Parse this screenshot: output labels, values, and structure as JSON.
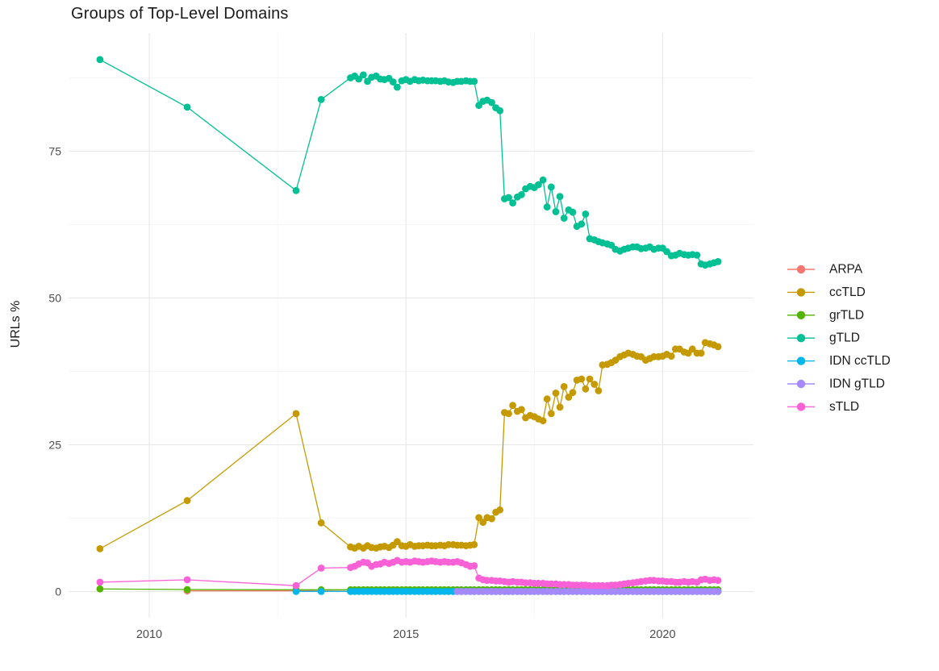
{
  "chart_data": {
    "type": "line-scatter",
    "title": "Groups of Top-Level Domains",
    "xlabel": "",
    "ylabel": "URLs %",
    "x_axis": {
      "ticks": [
        2010,
        2015,
        2020
      ],
      "minor_ticks": [
        2012.5,
        2017.5
      ],
      "range": [
        2008.45,
        2021.75
      ]
    },
    "y_axis": {
      "ticks": [
        0,
        25,
        50,
        75
      ],
      "minor_ticks": [
        12.5,
        37.5,
        62.5,
        87.5
      ],
      "range": [
        -4.6,
        95.2
      ]
    },
    "grid": true,
    "legend_position": "right",
    "colors": {
      "grid_major": "#e7e7e7",
      "grid_minor": "#f3f3f3",
      "tick_label": "#4d4d4d",
      "text": "#1a1a1a"
    },
    "x_dense": [
      2013.92,
      2014,
      2014.08,
      2014.17,
      2014.25,
      2014.33,
      2014.42,
      2014.5,
      2014.58,
      2014.67,
      2014.75,
      2014.83,
      2014.92,
      2015,
      2015.08,
      2015.17,
      2015.25,
      2015.33,
      2015.42,
      2015.5,
      2015.58,
      2015.67,
      2015.75,
      2015.83,
      2015.92,
      2016,
      2016.08,
      2016.17,
      2016.25,
      2016.33,
      2016.42,
      2016.5,
      2016.58,
      2016.67,
      2016.75,
      2016.83,
      2016.92,
      2017,
      2017.08,
      2017.17,
      2017.25,
      2017.33,
      2017.42,
      2017.5,
      2017.58,
      2017.67,
      2017.75,
      2017.83,
      2017.92,
      2018,
      2018.08,
      2018.17,
      2018.25,
      2018.33,
      2018.42,
      2018.5,
      2018.58,
      2018.67,
      2018.75,
      2018.83,
      2018.92,
      2019,
      2019.08,
      2019.17,
      2019.25,
      2019.33,
      2019.42,
      2019.5,
      2019.58,
      2019.67,
      2019.75,
      2019.83,
      2019.92,
      2020,
      2020.08,
      2020.17,
      2020.25,
      2020.33,
      2020.42,
      2020.5,
      2020.58,
      2020.67,
      2020.75,
      2020.83,
      2020.92,
      2021,
      2021.08
    ],
    "series": [
      {
        "name": "ARPA",
        "color": "#F8766D",
        "early": [
          [
            2010.74,
            0.12
          ],
          [
            2012.86,
            0.12
          ]
        ],
        "dense_from": 2013.92,
        "dense_const": 0.05
      },
      {
        "name": "ccTLD",
        "color": "#C49A00",
        "early": [
          [
            2009.04,
            7.3
          ],
          [
            2010.74,
            15.5
          ],
          [
            2012.86,
            30.3
          ],
          [
            2013.35,
            11.7
          ]
        ],
        "dense_from": 2013.92,
        "dense_y": [
          7.6,
          7.4,
          7.7,
          7.4,
          7.8,
          7.5,
          7.4,
          7.6,
          7.7,
          7.5,
          7.9,
          8.5,
          7.8,
          7.7,
          8.0,
          7.7,
          7.8,
          7.8,
          7.9,
          7.8,
          7.8,
          7.9,
          7.8,
          8.0,
          8.0,
          7.9,
          7.9,
          7.8,
          7.9,
          8.0,
          12.6,
          11.8,
          12.6,
          12.4,
          13.5,
          13.9,
          30.5,
          30.3,
          31.7,
          30.7,
          31.0,
          29.6,
          30.0,
          29.8,
          29.4,
          29.1,
          32.8,
          30.3,
          33.8,
          31.4,
          34.9,
          33.1,
          33.9,
          36.0,
          36.2,
          34.5,
          36.2,
          35.3,
          34.2,
          38.6,
          38.7,
          39.0,
          39.4,
          40.0,
          40.3,
          40.6,
          40.4,
          40.1,
          40.0,
          39.4,
          39.7,
          40.0,
          40.0,
          40.1,
          40.4,
          40.1,
          41.3,
          41.3,
          40.8,
          40.6,
          41.3,
          40.6,
          40.6,
          42.4,
          42.2,
          42.0,
          41.7
        ]
      },
      {
        "name": "grTLD",
        "color": "#53B400",
        "early": [
          [
            2009.04,
            0.45
          ],
          [
            2010.74,
            0.35
          ],
          [
            2012.86,
            0.3
          ],
          [
            2013.35,
            0.3
          ]
        ],
        "dense_from": 2013.92,
        "dense_const": 0.3
      },
      {
        "name": "gTLD",
        "color": "#00C094",
        "early": [
          [
            2009.04,
            90.6
          ],
          [
            2010.74,
            82.5
          ],
          [
            2012.86,
            68.3
          ],
          [
            2013.35,
            83.8
          ]
        ],
        "dense_from": 2013.92,
        "dense_y": [
          87.5,
          87.8,
          87.3,
          88.0,
          86.9,
          87.6,
          87.8,
          87.3,
          87.2,
          87.4,
          86.8,
          85.9,
          87.0,
          87.2,
          86.9,
          87.2,
          87.0,
          87.1,
          87.0,
          87.0,
          87.0,
          86.9,
          87.0,
          86.8,
          86.7,
          86.9,
          86.9,
          87.0,
          86.9,
          86.9,
          82.8,
          83.5,
          83.7,
          83.3,
          82.4,
          81.9,
          66.9,
          67.1,
          66.2,
          67.2,
          67.6,
          68.6,
          69.0,
          68.8,
          69.3,
          70.1,
          65.5,
          68.9,
          64.7,
          67.3,
          63.6,
          65.0,
          64.6,
          62.2,
          62.6,
          64.3,
          60.1,
          59.9,
          59.6,
          59.4,
          59.2,
          59.0,
          58.3,
          58.0,
          58.3,
          58.5,
          58.7,
          58.7,
          58.4,
          58.5,
          58.7,
          58.3,
          58.5,
          58.5,
          57.9,
          57.2,
          57.3,
          57.6,
          57.4,
          57.3,
          57.4,
          57.3,
          55.8,
          55.6,
          55.8,
          56.0,
          56.2
        ]
      },
      {
        "name": "IDN ccTLD",
        "color": "#00B6EB",
        "early": [
          [
            2012.86,
            0.02
          ],
          [
            2013.35,
            0.02
          ]
        ],
        "dense_from": 2013.92,
        "dense_const": 0.02
      },
      {
        "name": "IDN gTLD",
        "color": "#A58AFF",
        "early": [],
        "dense_from": 2016.0,
        "dense_const": 0.02
      },
      {
        "name": "sTLD",
        "color": "#FB61D7",
        "early": [
          [
            2009.04,
            1.6
          ],
          [
            2010.74,
            2.0
          ],
          [
            2012.86,
            1.0
          ],
          [
            2013.35,
            4.0
          ]
        ],
        "dense_from": 2013.92,
        "dense_y": [
          4.1,
          4.3,
          4.7,
          5.0,
          4.9,
          4.3,
          4.6,
          4.7,
          5.0,
          4.8,
          5.0,
          5.3,
          5.0,
          5.1,
          5.0,
          5.2,
          5.1,
          5.0,
          5.1,
          5.2,
          5.1,
          5.0,
          5.1,
          5.0,
          5.0,
          5.1,
          4.9,
          4.6,
          4.3,
          4.4,
          2.3,
          2.0,
          1.9,
          1.9,
          1.8,
          1.8,
          1.7,
          1.6,
          1.7,
          1.6,
          1.6,
          1.5,
          1.5,
          1.4,
          1.4,
          1.4,
          1.3,
          1.3,
          1.3,
          1.2,
          1.2,
          1.2,
          1.1,
          1.1,
          1.1,
          1.1,
          1.0,
          1.0,
          1.0,
          1.0,
          1.0,
          1.1,
          1.1,
          1.2,
          1.3,
          1.4,
          1.5,
          1.6,
          1.7,
          1.8,
          1.9,
          1.9,
          1.8,
          1.8,
          1.7,
          1.7,
          1.6,
          1.6,
          1.7,
          1.6,
          1.7,
          1.6,
          2.0,
          2.1,
          1.9,
          2.0,
          1.9
        ]
      }
    ]
  }
}
